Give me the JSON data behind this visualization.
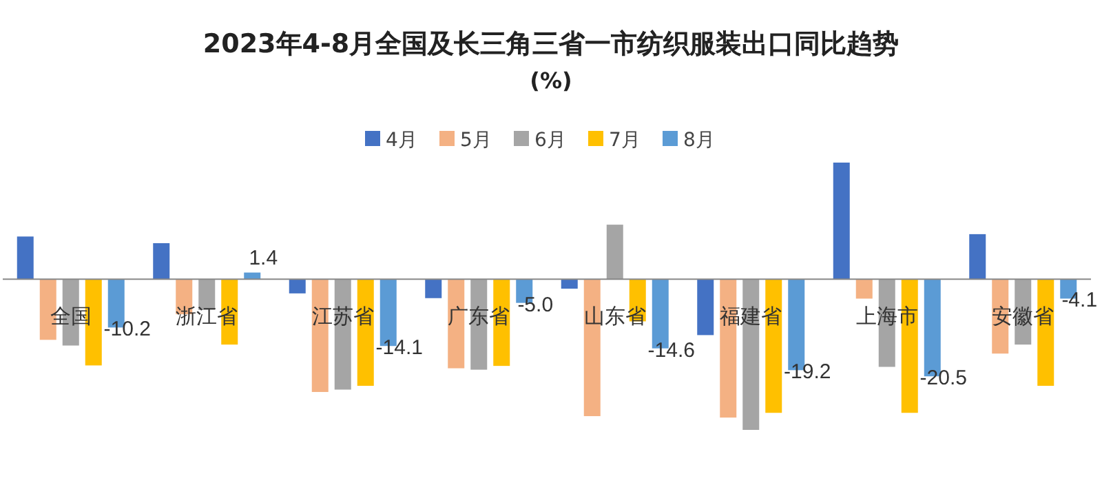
{
  "chart_data": {
    "type": "bar",
    "title": "2023年4-8月全国及长三角三省一市纺织服装出口同比趋势",
    "subtitle": "(%)",
    "categories": [
      "全国",
      "浙江省",
      "江苏省",
      "广东省",
      "山东省",
      "福建省",
      "上海市",
      "安徽省"
    ],
    "legend": "top",
    "series": [
      {
        "name": "4月",
        "color": "#4472c4",
        "values": [
          9.0,
          7.6,
          -3.0,
          -4.0,
          -2.0,
          -11.8,
          24.6,
          9.5
        ]
      },
      {
        "name": "5月",
        "color": "#f4b183",
        "values": [
          -12.8,
          -7.4,
          -23.8,
          -18.8,
          -28.9,
          -29.2,
          -4.1,
          -15.7
        ]
      },
      {
        "name": "6月",
        "color": "#a5a5a5",
        "values": [
          -14.0,
          -6.5,
          -23.3,
          -19.1,
          11.5,
          -31.8,
          -18.5,
          -13.8
        ]
      },
      {
        "name": "7月",
        "color": "#ffc000",
        "values": [
          -18.2,
          -13.8,
          -22.5,
          -18.3,
          -8.9,
          -28.2,
          -28.2,
          -22.5
        ]
      },
      {
        "name": "8月",
        "color": "#5b9bd5",
        "values": [
          -10.2,
          1.4,
          -14.1,
          -5.0,
          -14.6,
          -19.2,
          -20.5,
          -4.1
        ],
        "value_labels": [
          "-10.2",
          "1.4",
          "-14.1",
          "-5.0",
          "-14.6",
          "-19.2",
          "-20.5",
          "-4.1"
        ]
      }
    ]
  }
}
